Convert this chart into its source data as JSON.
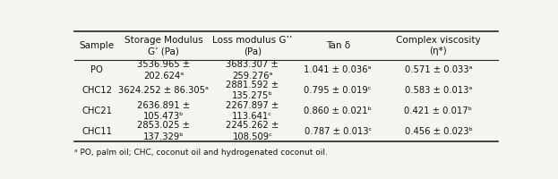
{
  "col_headers": [
    "Sample",
    "Storage Modulus\nG’ (Pa)",
    "Loss modulus G’’\n(Pa)",
    "Tan δ",
    "Complex viscosity\n(η*)"
  ],
  "rows": [
    {
      "sample": "PO",
      "storage": "3536.965 ±\n202.624ᵃ",
      "loss": "3683.307 ±\n259.276ᵃ",
      "tan": "1.041 ± 0.036ᵃ",
      "visc": "0.571 ± 0.033ᵃ"
    },
    {
      "sample": "CHC12",
      "storage": "3624.252 ± 86.305ᵃ",
      "loss": "2881.592 ±\n135.275ᵇ",
      "tan": "0.795 ± 0.019ᶜ",
      "visc": "0.583 ± 0.013ᵃ"
    },
    {
      "sample": "CHC21",
      "storage": "2636.891 ±\n105.473ᵇ",
      "loss": "2267.897 ±\n113.641ᶜ",
      "tan": "0.860 ± 0.021ᵇ",
      "visc": "0.421 ± 0.017ᵇ"
    },
    {
      "sample": "CHC11",
      "storage": "2853.025 ±\n137.329ᵇ",
      "loss": "2245.262 ±\n108.509ᶜ",
      "tan": "0.787 ± 0.013ᶜ",
      "visc": "0.456 ± 0.023ᵇ"
    }
  ],
  "footnote": "ᵃ PO, palm oil; CHC, coconut oil and hydrogenated coconut oil.",
  "bg_color": "#f5f5f0",
  "line_color": "#222222",
  "text_color": "#111111",
  "header_fontsize": 7.5,
  "cell_fontsize": 7.2,
  "footnote_fontsize": 6.5
}
